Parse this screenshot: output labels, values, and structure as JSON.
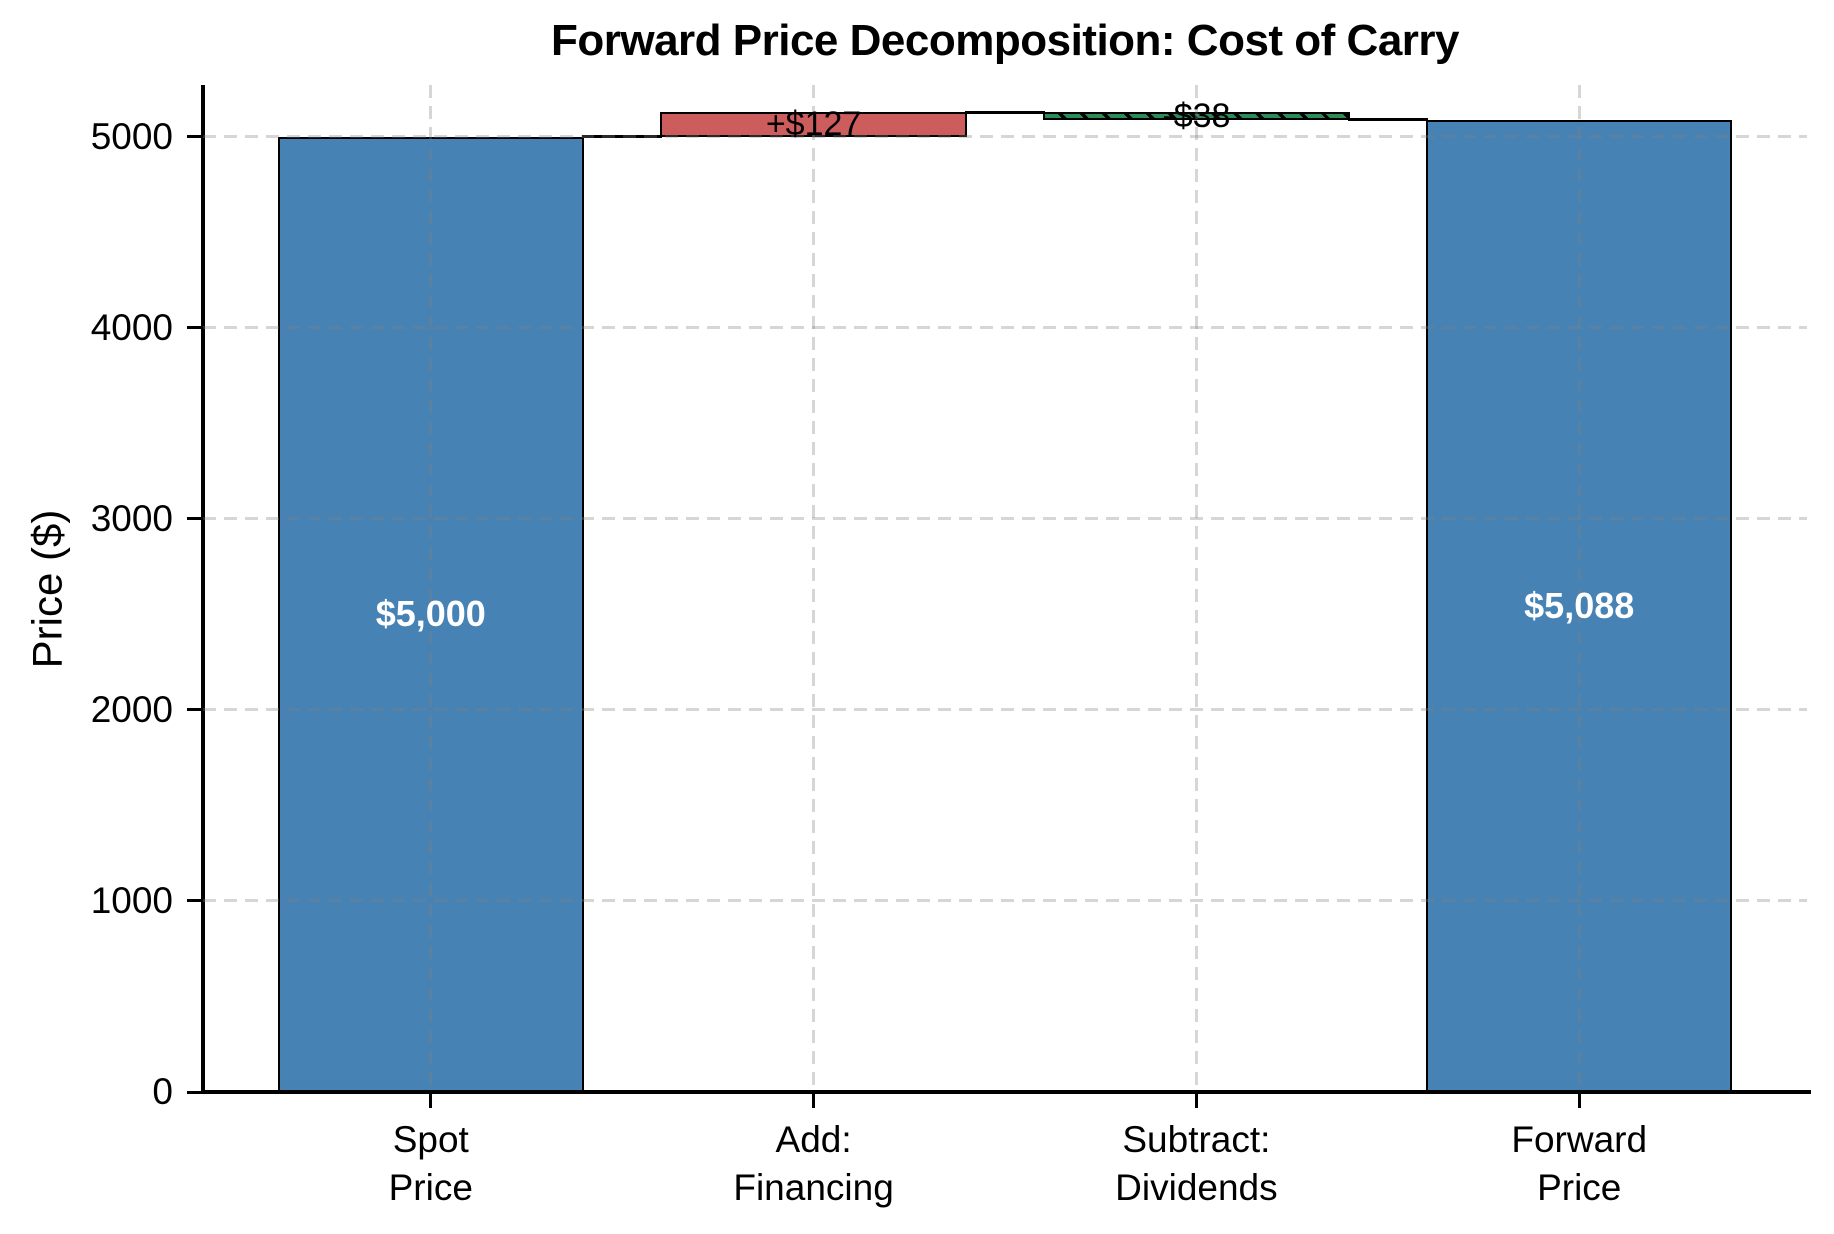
{
  "chart_data": {
    "type": "bar",
    "subtype": "waterfall",
    "title": "Forward Price Decomposition: Cost of Carry",
    "ylabel": "Price ($)",
    "xlabel": "",
    "categories": [
      "Spot\nPrice",
      "Add:\nFinancing",
      "Subtract:\nDividends",
      "Forward\nPrice"
    ],
    "yticks": [
      0,
      1000,
      2000,
      3000,
      4000,
      5000
    ],
    "ylim": [
      0,
      5270
    ],
    "grid": true,
    "grid_style": "dashed",
    "bars": [
      {
        "category": "Spot Price",
        "value": 5000,
        "base": 0,
        "top": 5000,
        "color": "#4682B4",
        "hatch": false,
        "value_label": "$5,000",
        "value_label_color": "#FFFFFF",
        "value_label_bold": true
      },
      {
        "category": "Add: Financing",
        "value": 127,
        "base": 5000,
        "top": 5127,
        "color": "#CD5C5C",
        "hatch": false,
        "value_label": "+$127",
        "value_label_color": "#000000",
        "value_label_bold": false
      },
      {
        "category": "Subtract: Dividends",
        "value": -38,
        "base": 5089,
        "top": 5127,
        "color": "#2E8B57",
        "hatch": true,
        "value_label": "-$38",
        "value_label_color": "#000000",
        "value_label_bold": false
      },
      {
        "category": "Forward Price",
        "value": 5088,
        "base": 0,
        "top": 5088,
        "color": "#4682B4",
        "hatch": false,
        "value_label": "$5,088",
        "value_label_color": "#FFFFFF",
        "value_label_bold": true
      }
    ],
    "connectors": [
      {
        "from": 0,
        "to": 1,
        "level": 5000
      },
      {
        "from": 1,
        "to": 2,
        "level": 5127
      },
      {
        "from": 2,
        "to": 3,
        "level": 5089
      }
    ],
    "colors": {
      "bar_edge": "#000000",
      "connector": "#000000",
      "spine": "#000000",
      "tick": "#000000",
      "grid": "#7F7F7F",
      "grid_alpha": 0.32,
      "background": "#FFFFFF",
      "text": "#000000"
    }
  }
}
